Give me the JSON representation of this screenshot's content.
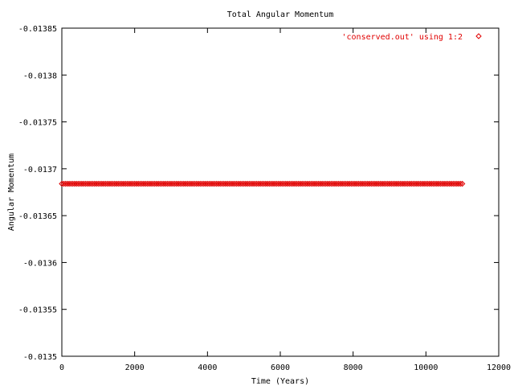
{
  "chart_data": {
    "type": "scatter",
    "title": "Total Angular Momentum",
    "xlabel": "Time (Years)",
    "ylabel": "Angular Momentum",
    "xlim": [
      0,
      12000
    ],
    "ylim": [
      -0.0135,
      -0.01385
    ],
    "x_ticks": [
      0,
      2000,
      4000,
      6000,
      8000,
      10000,
      12000
    ],
    "x_tick_labels": [
      "0",
      "2000",
      "4000",
      "6000",
      "8000",
      "10000",
      "12000"
    ],
    "y_ticks": [
      -0.01385,
      -0.0138,
      -0.01375,
      -0.0137,
      -0.01365,
      -0.0136,
      -0.01355,
      -0.0135
    ],
    "y_tick_labels": [
      "-0.01385",
      "-0.0138",
      "-0.01375",
      "-0.0137",
      "-0.01365",
      "-0.0136",
      "-0.01355",
      "-0.0135"
    ],
    "legend_position": "top-right",
    "grid": false,
    "series": [
      {
        "name": "'conserved.out' using 1:2",
        "color": "#e00000",
        "marker": "diamond",
        "x_range": [
          0,
          11000
        ],
        "point_step": 50,
        "y_constant": -0.013684
      }
    ]
  }
}
